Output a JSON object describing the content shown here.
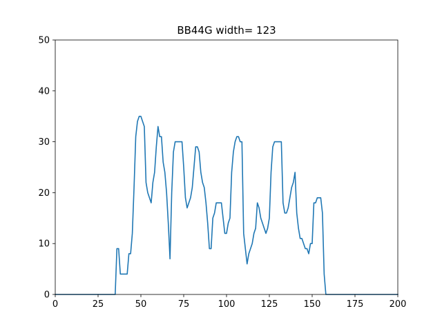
{
  "chart_data": {
    "type": "line",
    "title": "BB44G width= 123",
    "xlabel": "",
    "ylabel": "",
    "xlim": [
      0,
      200
    ],
    "ylim": [
      0,
      50
    ],
    "x_ticks": [
      0,
      25,
      50,
      75,
      100,
      125,
      150,
      175,
      200
    ],
    "y_ticks": [
      0,
      10,
      20,
      30,
      40,
      50
    ],
    "x_tick_labels": [
      "0",
      "25",
      "50",
      "75",
      "100",
      "125",
      "150",
      "175",
      "200"
    ],
    "y_tick_labels": [
      "0",
      "10",
      "20",
      "30",
      "40",
      "50"
    ],
    "grid": false,
    "legend": "none",
    "series": [
      {
        "color": "#1f77b4",
        "points": [
          [
            0,
            0
          ],
          [
            35,
            0
          ],
          [
            36,
            9
          ],
          [
            37,
            9
          ],
          [
            38,
            4
          ],
          [
            39,
            4
          ],
          [
            40,
            4
          ],
          [
            41,
            4
          ],
          [
            42,
            4
          ],
          [
            43,
            8
          ],
          [
            44,
            8
          ],
          [
            45,
            12
          ],
          [
            46,
            21
          ],
          [
            47,
            31
          ],
          [
            48,
            34
          ],
          [
            49,
            35
          ],
          [
            50,
            35
          ],
          [
            51,
            34
          ],
          [
            52,
            33
          ],
          [
            53,
            22
          ],
          [
            54,
            20
          ],
          [
            55,
            19
          ],
          [
            56,
            18
          ],
          [
            57,
            22
          ],
          [
            58,
            24
          ],
          [
            59,
            29
          ],
          [
            60,
            33
          ],
          [
            61,
            31
          ],
          [
            62,
            31
          ],
          [
            63,
            26
          ],
          [
            64,
            24
          ],
          [
            65,
            20
          ],
          [
            66,
            14
          ],
          [
            67,
            7
          ],
          [
            68,
            20
          ],
          [
            69,
            28
          ],
          [
            70,
            30
          ],
          [
            71,
            30
          ],
          [
            72,
            30
          ],
          [
            73,
            30
          ],
          [
            74,
            30
          ],
          [
            75,
            25
          ],
          [
            76,
            19
          ],
          [
            77,
            17
          ],
          [
            78,
            18
          ],
          [
            79,
            19
          ],
          [
            80,
            21
          ],
          [
            81,
            25
          ],
          [
            82,
            29
          ],
          [
            83,
            29
          ],
          [
            84,
            28
          ],
          [
            85,
            24
          ],
          [
            86,
            22
          ],
          [
            87,
            21
          ],
          [
            88,
            18
          ],
          [
            89,
            14
          ],
          [
            90,
            9
          ],
          [
            91,
            9
          ],
          [
            92,
            15
          ],
          [
            93,
            16
          ],
          [
            94,
            18
          ],
          [
            95,
            18
          ],
          [
            96,
            18
          ],
          [
            97,
            18
          ],
          [
            98,
            15
          ],
          [
            99,
            12
          ],
          [
            100,
            12
          ],
          [
            101,
            14
          ],
          [
            102,
            15
          ],
          [
            103,
            24
          ],
          [
            104,
            28
          ],
          [
            105,
            30
          ],
          [
            106,
            31
          ],
          [
            107,
            31
          ],
          [
            108,
            30
          ],
          [
            109,
            30
          ],
          [
            110,
            12
          ],
          [
            111,
            9
          ],
          [
            112,
            6
          ],
          [
            113,
            8
          ],
          [
            114,
            9
          ],
          [
            115,
            10
          ],
          [
            116,
            12
          ],
          [
            117,
            13
          ],
          [
            118,
            18
          ],
          [
            119,
            17
          ],
          [
            120,
            15
          ],
          [
            121,
            14
          ],
          [
            122,
            13
          ],
          [
            123,
            12
          ],
          [
            124,
            13
          ],
          [
            125,
            15
          ],
          [
            126,
            24
          ],
          [
            127,
            29
          ],
          [
            128,
            30
          ],
          [
            129,
            30
          ],
          [
            130,
            30
          ],
          [
            131,
            30
          ],
          [
            132,
            30
          ],
          [
            133,
            18
          ],
          [
            134,
            16
          ],
          [
            135,
            16
          ],
          [
            136,
            17
          ],
          [
            137,
            19
          ],
          [
            138,
            21
          ],
          [
            139,
            22
          ],
          [
            140,
            24
          ],
          [
            141,
            16
          ],
          [
            142,
            13
          ],
          [
            143,
            11
          ],
          [
            144,
            11
          ],
          [
            145,
            10
          ],
          [
            146,
            9
          ],
          [
            147,
            9
          ],
          [
            148,
            8
          ],
          [
            149,
            10
          ],
          [
            150,
            10
          ],
          [
            151,
            18
          ],
          [
            152,
            18
          ],
          [
            153,
            19
          ],
          [
            154,
            19
          ],
          [
            155,
            19
          ],
          [
            156,
            16
          ],
          [
            157,
            4
          ],
          [
            158,
            0
          ],
          [
            200,
            0
          ]
        ]
      }
    ]
  }
}
